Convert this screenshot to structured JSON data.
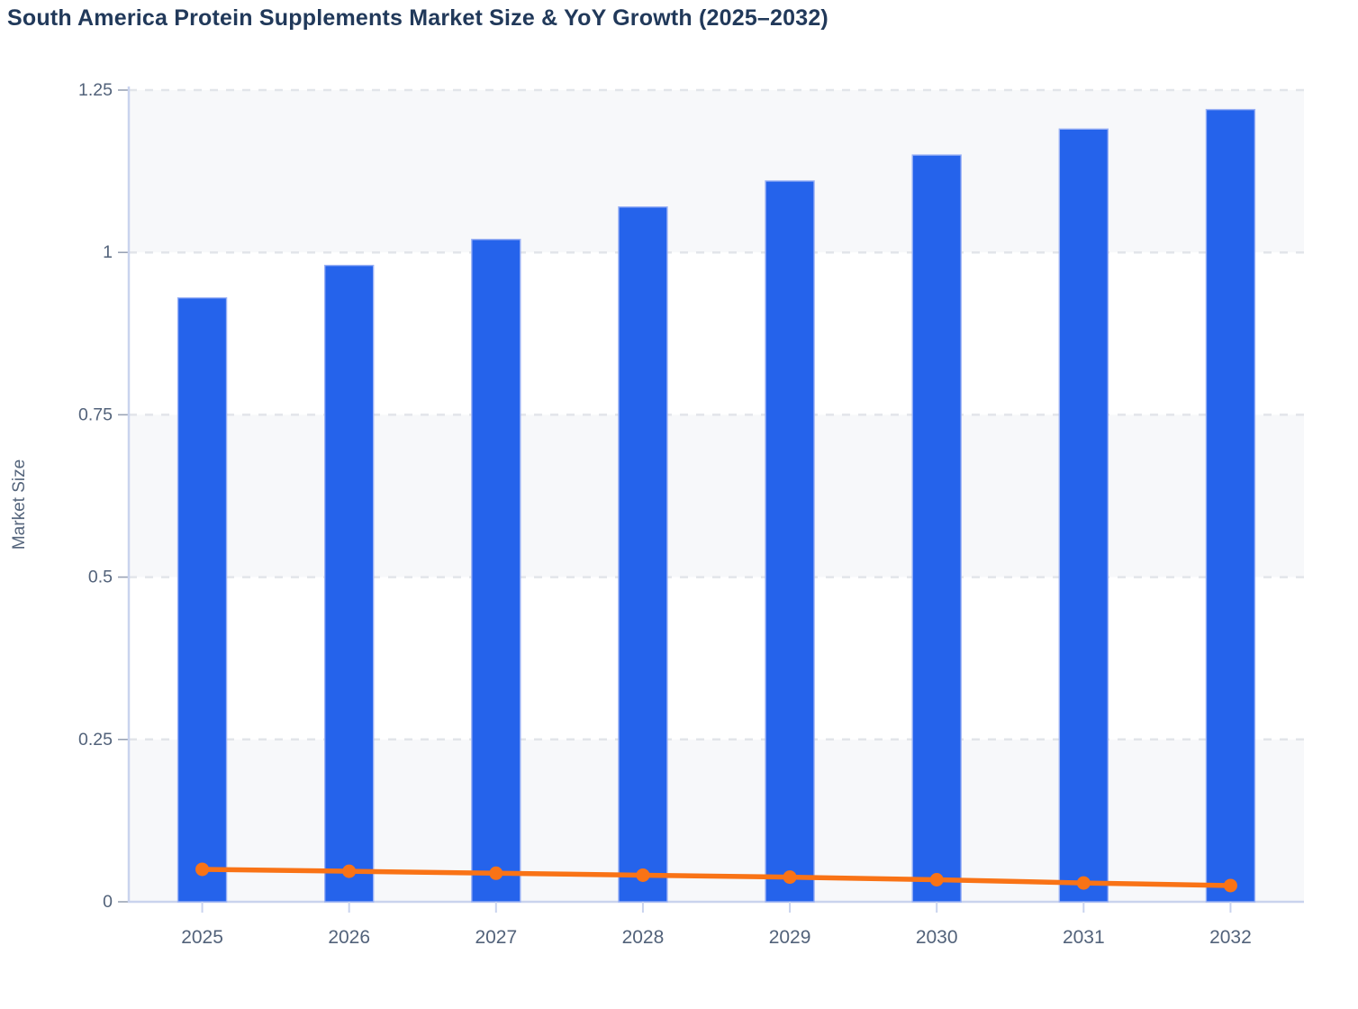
{
  "chart": {
    "title": "South America Protein Supplements Market Size & YoY Growth (2025–2032)"
  },
  "chart_data": {
    "type": "combo",
    "title": "South America Protein Supplements Market Size & YoY Growth (2025–2032)",
    "xlabel": "",
    "ylabel": "Market Size",
    "categories": [
      "2025",
      "2026",
      "2027",
      "2028",
      "2029",
      "2030",
      "2031",
      "2032"
    ],
    "series": [
      {
        "name": "Market Size",
        "type": "bar",
        "color": "#2563eb",
        "values": [
          0.93,
          0.98,
          1.02,
          1.07,
          1.11,
          1.15,
          1.19,
          1.22
        ]
      },
      {
        "name": "YoY Growth",
        "type": "line",
        "color": "#f97316",
        "values": [
          0.05,
          0.047,
          0.044,
          0.041,
          0.038,
          0.034,
          0.029,
          0.025
        ]
      }
    ],
    "ylim": [
      0,
      1.25
    ],
    "yticks": [
      0,
      0.25,
      0.5,
      0.75,
      1,
      1.25
    ],
    "ytick_labels": [
      "0",
      "0.25",
      "0.5",
      "0.75",
      "1",
      "1.25"
    ],
    "grid": "horizontal-dashed",
    "plot_bands": "alternating-horizontal",
    "legend": "none",
    "colors": {
      "bar_fill": "#2563eb",
      "bar_stroke": "#9ab1f5",
      "line": "#f97316",
      "band_gray": "#f7f8fa",
      "gridline": "#e2e5ea",
      "axis_line": "#c9d3ee",
      "tick_mark": "#9aa3b5",
      "tick_label": "#52627a",
      "title_text": "#21395a"
    }
  }
}
